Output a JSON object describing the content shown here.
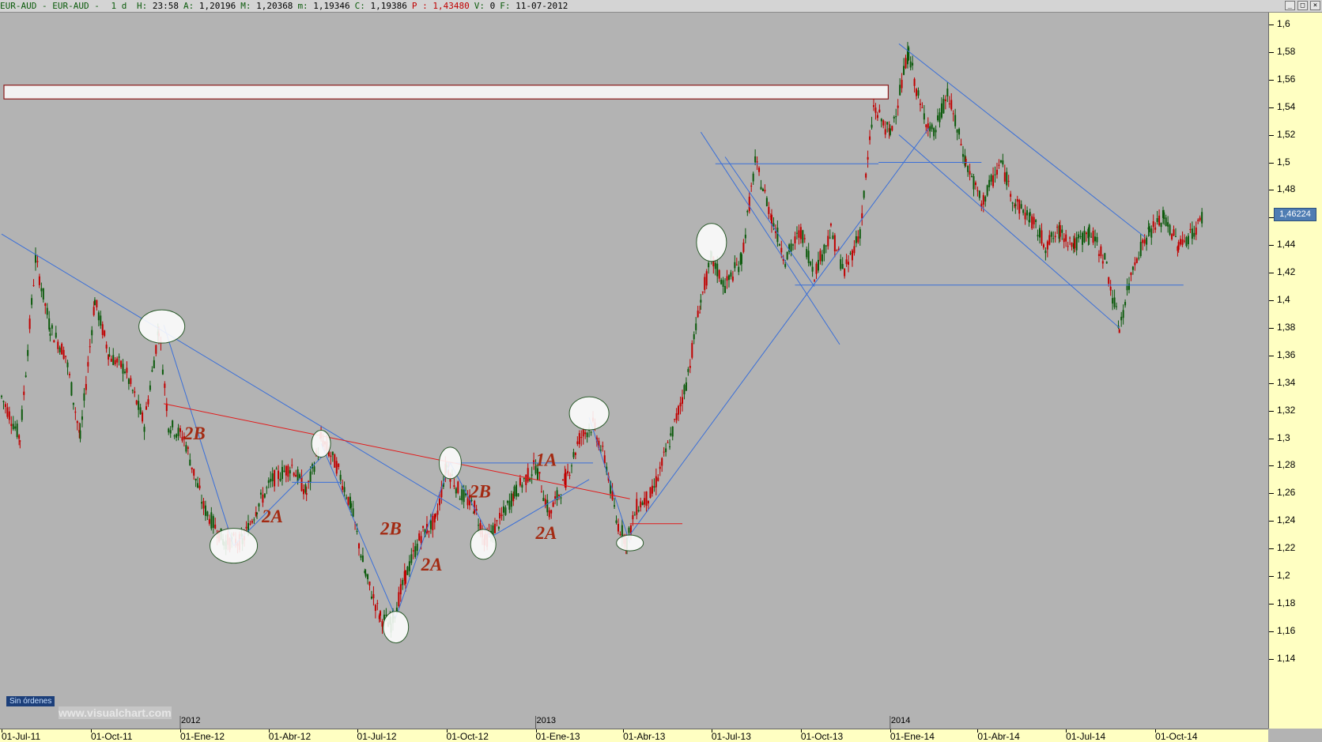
{
  "header": {
    "symbol": "EUR-AUD - EUR-AUD -",
    "timeframe": "1 d",
    "fields": [
      {
        "k": "H:",
        "v": "23:58"
      },
      {
        "k": "A:",
        "v": "1,20196"
      },
      {
        "k": "M:",
        "v": "1,20368"
      },
      {
        "k": "m:",
        "v": "1,19346"
      },
      {
        "k": "C:",
        "v": "1,19386"
      },
      {
        "k": "P :",
        "v": "1,43480"
      },
      {
        "k": "V:",
        "v": "0"
      },
      {
        "k": "F:",
        "v": "11-07-2012"
      }
    ],
    "buttons": [
      "_",
      "□",
      "×"
    ]
  },
  "y_labels": [
    "1,6",
    "1,58",
    "1,56",
    "1,54",
    "1,52",
    "1,5",
    "1,48",
    "1,46",
    "1,44",
    "1,42",
    "1,4",
    "1,38",
    "1,36",
    "1,34",
    "1,32",
    "1,3",
    "1,28",
    "1,26",
    "1,24",
    "1,22",
    "1,2",
    "1,18",
    "1,16",
    "1,14"
  ],
  "last_price": "1,46224",
  "x_labels": [
    "01-Jul-11",
    "01-Oct-11",
    "01-Ene-12",
    "01-Abr-12",
    "01-Jul-12",
    "01-Oct-12",
    "01-Ene-13",
    "01-Abr-13",
    "01-Jul-13",
    "01-Oct-13",
    "01-Ene-14",
    "01-Abr-14",
    "01-Jul-14",
    "01-Oct-14"
  ],
  "year_labels": [
    "2012",
    "2013",
    "2014"
  ],
  "annotations": [
    "2B",
    "2A",
    "2B",
    "2A",
    "2B",
    "1A",
    "2A"
  ],
  "orders_badge": "Sin órdenes",
  "watermark": "www.visualchart.com",
  "colors": {
    "bull": "#0b5a0b",
    "bear": "#c00000",
    "line": "#3a6fd8",
    "red_line": "#e21b1b",
    "label": "#a32a12"
  },
  "chart_data": {
    "type": "line",
    "title": "EUR-AUD",
    "ylim": [
      1.14,
      1.6
    ],
    "x_range": [
      "2011-07-01",
      "2014-11-20"
    ],
    "series": [
      {
        "values": [
          [
            "2011-07-01",
            1.33
          ],
          [
            "2011-07-20",
            1.3
          ],
          [
            "2011-08-05",
            1.43
          ],
          [
            "2011-08-20",
            1.38
          ],
          [
            "2011-09-05",
            1.36
          ],
          [
            "2011-09-20",
            1.3
          ],
          [
            "2011-10-05",
            1.4
          ],
          [
            "2011-10-20",
            1.36
          ],
          [
            "2011-11-05",
            1.35
          ],
          [
            "2011-11-25",
            1.31
          ],
          [
            "2011-12-10",
            1.38
          ],
          [
            "2011-12-20",
            1.31
          ],
          [
            "2012-01-05",
            1.3
          ],
          [
            "2012-01-25",
            1.25
          ],
          [
            "2012-02-15",
            1.225
          ],
          [
            "2012-03-05",
            1.225
          ],
          [
            "2012-03-20",
            1.25
          ],
          [
            "2012-04-05",
            1.27
          ],
          [
            "2012-04-25",
            1.28
          ],
          [
            "2012-05-10",
            1.26
          ],
          [
            "2012-05-25",
            1.3
          ],
          [
            "2012-06-10",
            1.28
          ],
          [
            "2012-06-25",
            1.25
          ],
          [
            "2012-07-10",
            1.2
          ],
          [
            "2012-07-25",
            1.17
          ],
          [
            "2012-08-05",
            1.165
          ],
          [
            "2012-08-20",
            1.2
          ],
          [
            "2012-09-05",
            1.23
          ],
          [
            "2012-09-20",
            1.24
          ],
          [
            "2012-10-01",
            1.28
          ],
          [
            "2012-10-15",
            1.26
          ],
          [
            "2012-10-30",
            1.25
          ],
          [
            "2012-11-10",
            1.225
          ],
          [
            "2012-11-25",
            1.24
          ],
          [
            "2012-12-10",
            1.26
          ],
          [
            "2013-01-01",
            1.28
          ],
          [
            "2013-01-15",
            1.245
          ],
          [
            "2013-02-01",
            1.27
          ],
          [
            "2013-02-15",
            1.3
          ],
          [
            "2013-03-01",
            1.31
          ],
          [
            "2013-03-15",
            1.28
          ],
          [
            "2013-03-25",
            1.24
          ],
          [
            "2013-04-05",
            1.225
          ],
          [
            "2013-04-15",
            1.25
          ],
          [
            "2013-05-01",
            1.26
          ],
          [
            "2013-05-20",
            1.3
          ],
          [
            "2013-06-05",
            1.34
          ],
          [
            "2013-06-20",
            1.4
          ],
          [
            "2013-07-01",
            1.43
          ],
          [
            "2013-07-15",
            1.41
          ],
          [
            "2013-08-01",
            1.43
          ],
          [
            "2013-08-15",
            1.5
          ],
          [
            "2013-09-01",
            1.46
          ],
          [
            "2013-09-15",
            1.43
          ],
          [
            "2013-10-01",
            1.45
          ],
          [
            "2013-10-15",
            1.42
          ],
          [
            "2013-11-01",
            1.45
          ],
          [
            "2013-11-15",
            1.42
          ],
          [
            "2013-12-01",
            1.45
          ],
          [
            "2013-12-15",
            1.54
          ],
          [
            "2014-01-01",
            1.52
          ],
          [
            "2014-01-20",
            1.58
          ],
          [
            "2014-02-01",
            1.54
          ],
          [
            "2014-02-15",
            1.52
          ],
          [
            "2014-03-01",
            1.55
          ],
          [
            "2014-03-20",
            1.5
          ],
          [
            "2014-04-05",
            1.47
          ],
          [
            "2014-04-25",
            1.5
          ],
          [
            "2014-05-10",
            1.47
          ],
          [
            "2014-05-25",
            1.46
          ],
          [
            "2014-06-10",
            1.44
          ],
          [
            "2014-06-25",
            1.45
          ],
          [
            "2014-07-10",
            1.44
          ],
          [
            "2014-07-25",
            1.45
          ],
          [
            "2014-08-10",
            1.43
          ],
          [
            "2014-08-25",
            1.38
          ],
          [
            "2014-09-10",
            1.43
          ],
          [
            "2014-09-25",
            1.45
          ],
          [
            "2014-10-10",
            1.46
          ],
          [
            "2014-10-25",
            1.44
          ],
          [
            "2014-11-10",
            1.45
          ],
          [
            "2014-11-20",
            1.462
          ]
        ]
      }
    ]
  }
}
